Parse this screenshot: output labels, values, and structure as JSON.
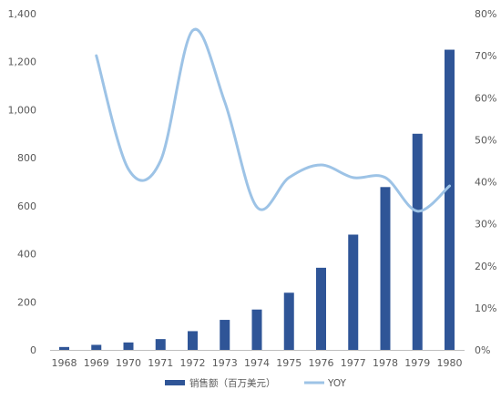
{
  "chart_data": {
    "type": "bar",
    "categories": [
      "1968",
      "1969",
      "1970",
      "1971",
      "1972",
      "1973",
      "1974",
      "1975",
      "1976",
      "1977",
      "1978",
      "1979",
      "1980"
    ],
    "series": [
      {
        "name": "销售额（百万美元）",
        "type": "bar",
        "axis": "left",
        "color": "#2F5597",
        "values": [
          12,
          21,
          31,
          45,
          78,
          125,
          168,
          238,
          342,
          480,
          678,
          900,
          1250
        ]
      },
      {
        "name": "YOY",
        "type": "line",
        "axis": "right",
        "color": "#9DC3E6",
        "values": [
          null,
          70,
          43,
          45,
          76,
          59,
          34,
          41,
          44,
          41,
          41,
          33,
          39
        ]
      }
    ],
    "y_left": {
      "min": 0,
      "max": 1400,
      "ticks": [
        0,
        200,
        400,
        600,
        800,
        1000,
        1200,
        1400
      ],
      "tick_labels": [
        "0",
        "200",
        "400",
        "600",
        "800",
        "1,000",
        "1,200",
        "1,400"
      ]
    },
    "y_right": {
      "min": 0,
      "max": 80,
      "ticks": [
        0,
        10,
        20,
        30,
        40,
        50,
        60,
        70,
        80
      ],
      "tick_labels": [
        "0%",
        "10%",
        "20%",
        "30%",
        "40%",
        "50%",
        "60%",
        "70%",
        "80%"
      ]
    },
    "title": "",
    "xlabel": "",
    "ylabel": "",
    "grid": false,
    "legend_position": "bottom"
  }
}
